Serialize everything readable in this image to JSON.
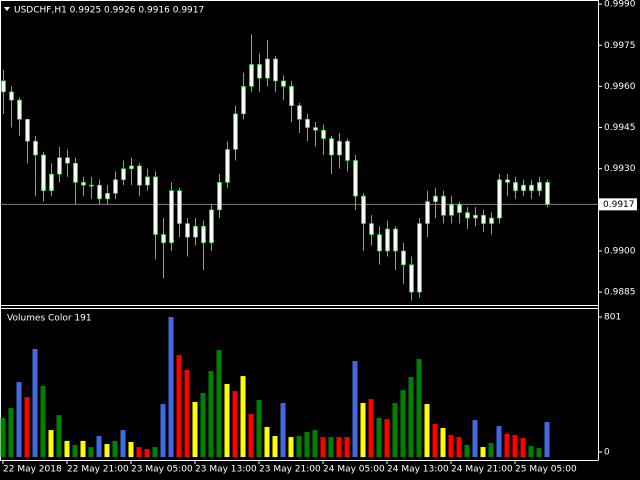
{
  "chart_data": [
    {
      "type": "candlestick",
      "title": "USDCHF,H1  0.9925 0.9926 0.9916 0.9917",
      "categories": [
        "22 May 2018",
        null,
        null,
        null,
        null,
        null,
        null,
        null,
        "22 May 21:00",
        null,
        null,
        null,
        null,
        null,
        null,
        null,
        "23 May 05:00",
        null,
        null,
        null,
        null,
        null,
        null,
        null,
        "23 May 13:00",
        null,
        null,
        null,
        null,
        null,
        null,
        null,
        "23 May 21:00",
        null,
        null,
        null,
        null,
        null,
        null,
        null,
        "24 May 05:00",
        null,
        null,
        null,
        null,
        null,
        null,
        null,
        "24 May 13:00",
        null,
        null,
        null,
        null,
        null,
        null,
        null,
        "24 May 21:00",
        null,
        null,
        null,
        null,
        null,
        null,
        null,
        "25 May 05:00",
        null,
        null,
        null,
        null
      ],
      "open": [
        0.9962,
        0.9958,
        0.9955,
        0.9948,
        0.994,
        0.9935,
        0.9922,
        0.9928,
        0.9934,
        0.9932,
        0.9925,
        0.9924,
        0.9924,
        0.9919,
        0.9921,
        0.9926,
        0.993,
        0.9931,
        0.9924,
        0.9927,
        0.9906,
        0.9903,
        0.9922,
        0.991,
        0.9905,
        0.9909,
        0.9903,
        0.9915,
        0.9925,
        0.9937,
        0.995,
        0.996,
        0.9968,
        0.9963,
        0.997,
        0.9962,
        0.996,
        0.9953,
        0.9948,
        0.9945,
        0.9944,
        0.9941,
        0.9935,
        0.994,
        0.9933,
        0.992,
        0.991,
        0.9906,
        0.99,
        0.9908,
        0.99,
        0.9895,
        0.9885,
        0.991,
        0.9918,
        0.992,
        0.9913,
        0.9917,
        0.9914,
        0.9912,
        0.9913,
        0.991,
        0.9912,
        0.9926,
        0.9925,
        0.9922,
        0.9924,
        0.9922,
        0.9925
      ],
      "high": [
        0.9966,
        0.996,
        0.9956,
        0.9948,
        0.9942,
        0.9936,
        0.9932,
        0.9938,
        0.9937,
        0.9934,
        0.9927,
        0.9927,
        0.9926,
        0.9924,
        0.9929,
        0.9933,
        0.9934,
        0.9932,
        0.993,
        0.9929,
        0.9912,
        0.9925,
        0.9923,
        0.9912,
        0.9912,
        0.9911,
        0.9917,
        0.9928,
        0.994,
        0.9953,
        0.9965,
        0.9979,
        0.9972,
        0.9977,
        0.9971,
        0.9964,
        0.9962,
        0.9954,
        0.995,
        0.9947,
        0.9946,
        0.9942,
        0.9943,
        0.9941,
        0.9935,
        0.9921,
        0.9913,
        0.9909,
        0.9911,
        0.9909,
        0.9903,
        0.9898,
        0.9912,
        0.9922,
        0.9923,
        0.9922,
        0.992,
        0.9918,
        0.9916,
        0.9916,
        0.9915,
        0.9914,
        0.9928,
        0.9928,
        0.9927,
        0.9926,
        0.9926,
        0.9927,
        0.9926
      ],
      "low": [
        0.995,
        0.9945,
        0.9942,
        0.9932,
        0.992,
        0.9918,
        0.992,
        0.9925,
        0.9927,
        0.9917,
        0.992,
        0.9919,
        0.9917,
        0.9917,
        0.9919,
        0.9924,
        0.9924,
        0.992,
        0.9922,
        0.9897,
        0.989,
        0.99,
        0.9905,
        0.9898,
        0.9902,
        0.9893,
        0.99,
        0.9912,
        0.9923,
        0.9933,
        0.9948,
        0.9958,
        0.9958,
        0.996,
        0.9958,
        0.9955,
        0.9947,
        0.9943,
        0.994,
        0.9938,
        0.9935,
        0.9928,
        0.993,
        0.9929,
        0.9915,
        0.99,
        0.9902,
        0.9895,
        0.9898,
        0.9893,
        0.9888,
        0.9882,
        0.9883,
        0.9905,
        0.9912,
        0.991,
        0.991,
        0.991,
        0.9908,
        0.9909,
        0.9907,
        0.9906,
        0.991,
        0.992,
        0.9919,
        0.992,
        0.9919,
        0.992,
        0.9916
      ],
      "close": [
        0.9958,
        0.9955,
        0.9948,
        0.994,
        0.9935,
        0.9922,
        0.9928,
        0.9934,
        0.9932,
        0.9925,
        0.9924,
        0.9924,
        0.9919,
        0.9921,
        0.9926,
        0.993,
        0.9931,
        0.9924,
        0.9927,
        0.9906,
        0.9903,
        0.9922,
        0.991,
        0.9905,
        0.9909,
        0.9903,
        0.9915,
        0.9925,
        0.9937,
        0.995,
        0.996,
        0.9968,
        0.9963,
        0.997,
        0.9962,
        0.996,
        0.9953,
        0.9948,
        0.9945,
        0.9944,
        0.9941,
        0.9935,
        0.994,
        0.9933,
        0.992,
        0.991,
        0.9906,
        0.99,
        0.9908,
        0.99,
        0.9895,
        0.9885,
        0.991,
        0.9918,
        0.992,
        0.9913,
        0.9917,
        0.9914,
        0.9912,
        0.9913,
        0.991,
        0.9912,
        0.9926,
        0.9925,
        0.9922,
        0.9924,
        0.9922,
        0.9925,
        0.9917
      ],
      "ylim": [
        0.98803,
        0.99915
      ],
      "yticks": [
        {
          "value": 0.999,
          "label": "0.9990"
        },
        0.9975,
        {
          "value": 0.996,
          "label": "0.9960"
        },
        0.9945,
        {
          "value": 0.993,
          "label": "0.9930"
        },
        {
          "value": 0.99,
          "label": "0.9900"
        },
        0.9885
      ],
      "current_price": 0.9917,
      "line_color": "#00ff00",
      "body_color": "#f0fff0",
      "price_line_color": "#808080"
    },
    {
      "type": "bar",
      "title": "Volumes Color 191",
      "values": [
        223,
        280,
        429,
        343,
        618,
        406,
        154,
        240,
        92,
        69,
        92,
        57,
        120,
        74,
        92,
        154,
        86,
        57,
        46,
        57,
        303,
        801,
        583,
        498,
        315,
        366,
        492,
        612,
        418,
        378,
        463,
        246,
        326,
        172,
        120,
        309,
        114,
        120,
        143,
        154,
        114,
        114,
        114,
        114,
        549,
        309,
        332,
        223,
        217,
        309,
        383,
        458,
        561,
        303,
        189,
        166,
        126,
        114,
        69,
        212,
        57,
        80,
        177,
        132,
        126,
        109,
        63,
        51,
        200
      ],
      "colors": [
        "#008000",
        "#008000",
        "#4169e1",
        "#ff0000",
        "#4169e1",
        "#008000",
        "#ffff00",
        "#008000",
        "#ffff00",
        "#008000",
        "#ffff00",
        "#008000",
        "#4169e1",
        "#ffff00",
        "#008000",
        "#4169e1",
        "#ffff00",
        "#ff0000",
        "#ff0000",
        "#008000",
        "#4169e1",
        "#4169e1",
        "#ff0000",
        "#ff0000",
        "#ffff00",
        "#008000",
        "#008000",
        "#008000",
        "#ffff00",
        "#ff0000",
        "#ffff00",
        "#ff0000",
        "#008000",
        "#ffff00",
        "#ffff00",
        "#4169e1",
        "#ffff00",
        "#008000",
        "#008000",
        "#008000",
        "#ff0000",
        "#008000",
        "#ff0000",
        "#ff0000",
        "#4169e1",
        "#ffff00",
        "#ff0000",
        "#008000",
        "#ff0000",
        "#008000",
        "#008000",
        "#008000",
        "#008000",
        "#ffff00",
        "#ff0000",
        "#ffff00",
        "#ff0000",
        "#ff0000",
        "#008000",
        "#4169e1",
        "#ffff00",
        "#008000",
        "#4169e1",
        "#ff0000",
        "#ff0000",
        "#ff0000",
        "#008000",
        "#008000",
        "#4169e1"
      ],
      "ylim": [
        0,
        847
      ],
      "yticks": [
        0,
        801
      ]
    }
  ]
}
